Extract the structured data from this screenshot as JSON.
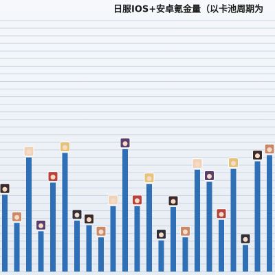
{
  "chart_data": {
    "type": "bar",
    "title": "日服IOS+安卓氪金量（以卡池周期为",
    "categories": [
      null,
      null,
      null,
      null,
      null,
      null,
      null,
      null,
      null,
      null,
      null,
      null,
      null,
      null,
      null,
      null,
      null,
      null,
      null,
      null,
      null,
      null,
      null
    ],
    "values": [
      10.1,
      6.4,
      15,
      5.3,
      11.7,
      15.6,
      6.7,
      6.1,
      4.5,
      8.6,
      16.1,
      8.6,
      11.5,
      4.1,
      8.5,
      4.5,
      13.4,
      11.8,
      6.8,
      13.5,
      3.5,
      14.5,
      15.3
    ],
    "color": "#2f6fb5",
    "ylim": [
      0,
      33
    ],
    "yticks": [
      0,
      1,
      2,
      3,
      4,
      5,
      6,
      7,
      8,
      9,
      10,
      11,
      12,
      13,
      14,
      15,
      16,
      17,
      18,
      19,
      20,
      21,
      22,
      23,
      24,
      25,
      26,
      27,
      28,
      29,
      30,
      31,
      32,
      33
    ],
    "grid": true
  }
}
